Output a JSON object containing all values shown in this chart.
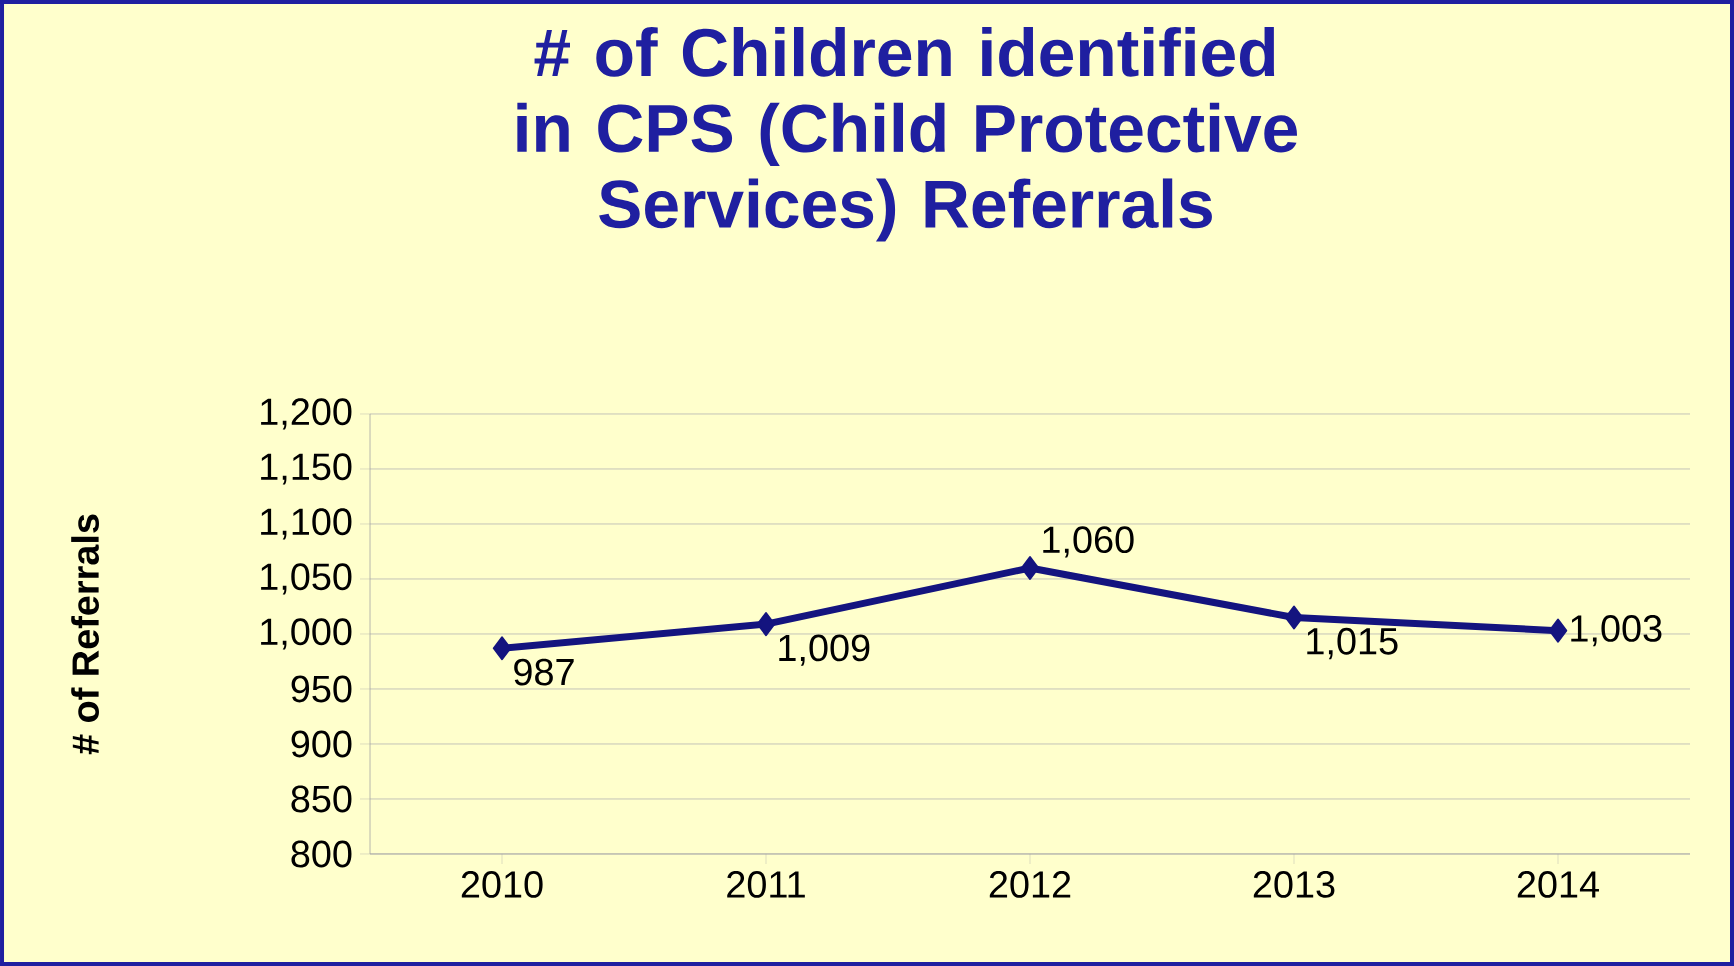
{
  "chart_data": {
    "type": "line",
    "title": "# of Children identified in CPS (Child Protective Services) Referrals",
    "ylabel": "# of Referrals",
    "categories": [
      "2010",
      "2011",
      "2012",
      "2013",
      "2014"
    ],
    "series": [
      {
        "color": "#14147f",
        "values": [
          987,
          1009,
          1060,
          1015,
          1003
        ],
        "value_labels": [
          "987",
          "1,009",
          "1,060",
          "1,015",
          "1,003"
        ]
      }
    ],
    "ylim": [
      800,
      1200
    ],
    "yticks": [
      {
        "value": 800,
        "label": "800"
      },
      {
        "value": 850,
        "label": "850"
      },
      {
        "value": 900,
        "label": "900"
      },
      {
        "value": 950,
        "label": "950"
      },
      {
        "value": 1000,
        "label": "1,000"
      },
      {
        "value": 1050,
        "label": "1,050"
      },
      {
        "value": 1100,
        "label": "1,100"
      },
      {
        "value": 1150,
        "label": "1,150"
      },
      {
        "value": 1200,
        "label": "1,200"
      }
    ],
    "grid": "y",
    "marker": "diamond",
    "line_style": "solid"
  }
}
